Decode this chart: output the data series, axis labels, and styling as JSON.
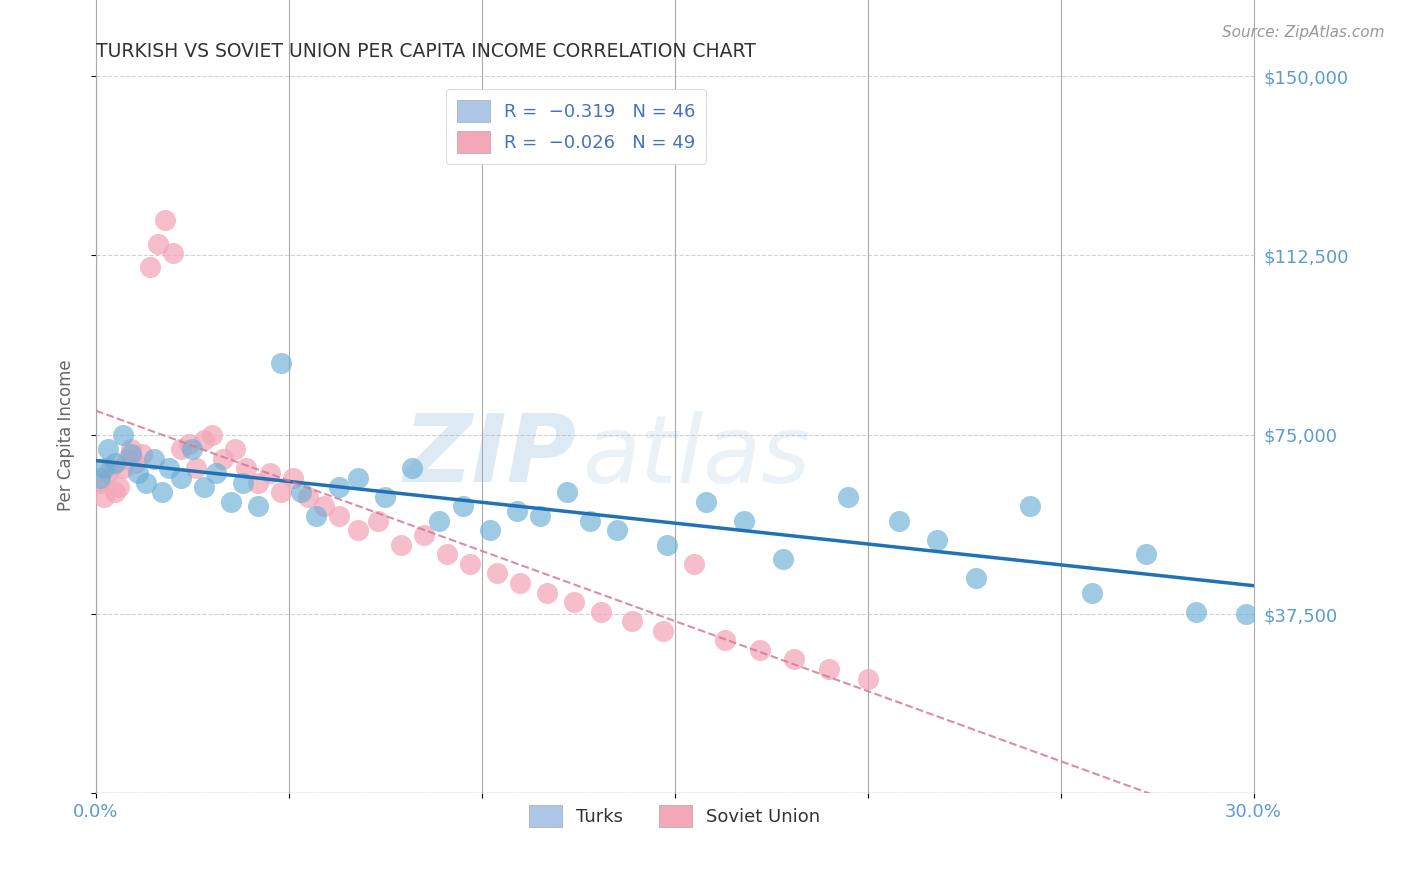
{
  "title": "TURKISH VS SOVIET UNION PER CAPITA INCOME CORRELATION CHART",
  "source": "Source: ZipAtlas.com",
  "ylabel": "Per Capita Income",
  "watermark_zip": "ZIP",
  "watermark_atlas": "atlas",
  "xlim": [
    0.0,
    0.3
  ],
  "ylim": [
    0,
    150000
  ],
  "yticks": [
    0,
    37500,
    75000,
    112500,
    150000
  ],
  "ytick_labels": [
    "",
    "$37,500",
    "$75,000",
    "$112,500",
    "$150,000"
  ],
  "xticks": [
    0.0,
    0.05,
    0.1,
    0.15,
    0.2,
    0.25,
    0.3
  ],
  "xtick_labels": [
    "0.0%",
    "",
    "",
    "",
    "",
    "",
    "30.0%"
  ],
  "turks_color": "#6baed6",
  "soviet_color": "#f4a7b9",
  "turks_line_color": "#2171b5",
  "soviet_line_color": "#d4799a",
  "background_color": "#ffffff",
  "grid_color": "#cccccc",
  "title_color": "#333333",
  "axis_label_color": "#666666",
  "tick_color": "#5b9bd5",
  "turks_x": [
    0.001,
    0.002,
    0.003,
    0.005,
    0.007,
    0.009,
    0.011,
    0.013,
    0.015,
    0.017,
    0.019,
    0.022,
    0.025,
    0.028,
    0.031,
    0.035,
    0.038,
    0.042,
    0.048,
    0.053,
    0.057,
    0.063,
    0.068,
    0.075,
    0.082,
    0.089,
    0.095,
    0.102,
    0.109,
    0.115,
    0.122,
    0.128,
    0.135,
    0.148,
    0.158,
    0.168,
    0.178,
    0.195,
    0.208,
    0.218,
    0.228,
    0.242,
    0.258,
    0.272,
    0.285,
    0.298
  ],
  "turks_y": [
    66000,
    68000,
    72000,
    69000,
    75000,
    71000,
    67000,
    65000,
    70000,
    63000,
    68000,
    66000,
    72000,
    64000,
    67000,
    61000,
    65000,
    60000,
    90000,
    63000,
    58000,
    64000,
    66000,
    62000,
    68000,
    57000,
    60000,
    55000,
    59000,
    58000,
    63000,
    57000,
    55000,
    52000,
    61000,
    57000,
    49000,
    62000,
    57000,
    53000,
    45000,
    60000,
    42000,
    50000,
    38000,
    37500
  ],
  "soviet_x": [
    0.001,
    0.002,
    0.003,
    0.004,
    0.005,
    0.006,
    0.007,
    0.008,
    0.009,
    0.01,
    0.012,
    0.014,
    0.016,
    0.018,
    0.02,
    0.022,
    0.024,
    0.026,
    0.028,
    0.03,
    0.033,
    0.036,
    0.039,
    0.042,
    0.045,
    0.048,
    0.051,
    0.055,
    0.059,
    0.063,
    0.068,
    0.073,
    0.079,
    0.085,
    0.091,
    0.097,
    0.104,
    0.11,
    0.117,
    0.124,
    0.131,
    0.139,
    0.147,
    0.155,
    0.163,
    0.172,
    0.181,
    0.19,
    0.2
  ],
  "soviet_y": [
    65000,
    62000,
    67000,
    68000,
    63000,
    64000,
    68000,
    70000,
    72000,
    69000,
    71000,
    110000,
    115000,
    120000,
    113000,
    72000,
    73000,
    68000,
    74000,
    75000,
    70000,
    72000,
    68000,
    65000,
    67000,
    63000,
    66000,
    62000,
    60000,
    58000,
    55000,
    57000,
    52000,
    54000,
    50000,
    48000,
    46000,
    44000,
    42000,
    40000,
    38000,
    36000,
    34000,
    48000,
    32000,
    30000,
    28000,
    26000,
    24000
  ]
}
